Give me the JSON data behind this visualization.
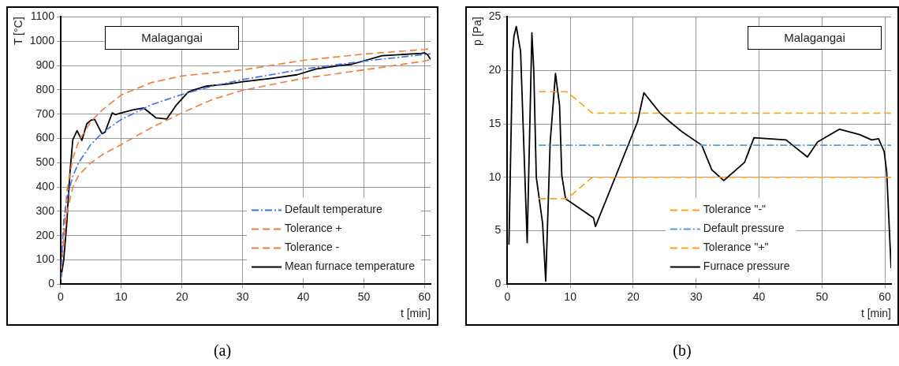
{
  "chart_data": [
    {
      "type": "line",
      "title": "(a)",
      "xlabel": "t [min]",
      "ylabel": "T [°C]",
      "xlim": [
        0,
        61
      ],
      "ylim": [
        0,
        1100
      ],
      "xticks": [
        0,
        10,
        20,
        30,
        40,
        50,
        60
      ],
      "yticks": [
        0,
        100,
        200,
        300,
        400,
        500,
        600,
        700,
        800,
        900,
        1000,
        1100
      ],
      "grid": true,
      "legend": "bottom right",
      "marker": "none",
      "annotations": [
        "Malagangai"
      ],
      "series": [
        {
          "name": "Default temperature",
          "color": "#3f6fe8",
          "line_style": "dashdot",
          "x": [
            0,
            0.5,
            1,
            2,
            3,
            5,
            7,
            10,
            15,
            20,
            25,
            30,
            40,
            50,
            60,
            61
          ],
          "values": [
            20,
            261,
            349,
            445,
            502,
            576,
            626,
            678,
            739,
            781,
            815,
            842,
            885,
            918,
            945,
            948
          ]
        },
        {
          "name": "Tolerance +",
          "color": "#f57a35",
          "line_style": "dashed",
          "x": [
            0,
            0.5,
            1,
            2,
            3,
            5,
            7,
            10,
            15,
            20,
            30,
            40,
            50,
            60,
            61
          ],
          "values": [
            20,
            200,
            380,
            520,
            590,
            670,
            720,
            779,
            830,
            857,
            882,
            921,
            947,
            966,
            970
          ]
        },
        {
          "name": "Tolerance -",
          "color": "#f57a35",
          "line_style": "dashed",
          "x": [
            0,
            0.5,
            1,
            2,
            3,
            5,
            7,
            10,
            15,
            20,
            25,
            30,
            40,
            50,
            60,
            61
          ],
          "values": [
            20,
            180,
            290,
            400,
            450,
            500,
            535,
            575,
            645,
            705,
            760,
            798,
            847,
            882,
            918,
            925
          ]
        },
        {
          "name": "Mean furnace temperature",
          "color": "#000000",
          "line_style": "solid",
          "x": [
            0,
            0.5,
            1,
            1.5,
            2,
            2.7,
            3.5,
            4.3,
            5,
            5.6,
            6.8,
            7.3,
            8.5,
            9,
            10,
            12,
            13.7,
            15.7,
            17.5,
            19,
            21,
            22,
            24,
            28,
            30,
            35,
            39,
            42,
            46,
            48,
            53,
            59.5,
            60,
            60.5,
            61
          ],
          "values": [
            20,
            100,
            250,
            450,
            595,
            632,
            592,
            660,
            675,
            678,
            620,
            625,
            705,
            698,
            705,
            718,
            725,
            685,
            680,
            735,
            790,
            800,
            815,
            825,
            833,
            848,
            862,
            885,
            900,
            905,
            940,
            950,
            952,
            945,
            925
          ]
        }
      ]
    },
    {
      "type": "line",
      "title": "(b)",
      "xlabel": "t [min]",
      "ylabel": "p [Pa]",
      "xlim": [
        0,
        61
      ],
      "ylim": [
        0,
        25
      ],
      "xticks": [
        0,
        10,
        20,
        30,
        40,
        50,
        60
      ],
      "yticks": [
        0,
        5,
        10,
        15,
        20,
        25
      ],
      "grid": true,
      "legend": "bottom",
      "marker": "none",
      "annotations": [
        "Malagangai"
      ],
      "series": [
        {
          "name": "Tolerance \"-\"",
          "color": "#ffa010",
          "line_style": "dashed",
          "x": [
            5,
            9.5,
            13.5,
            61
          ],
          "values": [
            18,
            18,
            16,
            16
          ]
        },
        {
          "name": "Default pressure",
          "color": "#5b9bd5",
          "line_style": "dashdot",
          "x": [
            5,
            61
          ],
          "values": [
            13,
            13
          ]
        },
        {
          "name": "Tolerance \"+\"",
          "color": "#ffa010",
          "line_style": "dashed",
          "x": [
            5,
            9.5,
            13.5,
            61
          ],
          "values": [
            8,
            8,
            10,
            10
          ]
        },
        {
          "name": "Furnace pressure",
          "color": "#000000",
          "line_style": "solid",
          "x": [
            0.25,
            0.84,
            1.05,
            1.42,
            2.1,
            3.15,
            3.9,
            4.2,
            4.6,
            5.6,
            6.1,
            6.8,
            7.06,
            7.3,
            7.65,
            8.3,
            8.65,
            9.25,
            13.7,
            14,
            20.7,
            21.7,
            24.3,
            25.8,
            27.9,
            30.9,
            32.5,
            34.4,
            37.7,
            39.2,
            44.3,
            47.7,
            49.3,
            52.8,
            56,
            57.9,
            59,
            59.9,
            60.3,
            61
          ],
          "values": [
            3.7,
            21.7,
            23.2,
            24.1,
            21.8,
            3.9,
            23.5,
            20,
            10,
            5.7,
            0.3,
            13.2,
            15.2,
            17,
            19.7,
            16.7,
            10.2,
            8,
            6.2,
            5.4,
            15.2,
            17.9,
            16,
            15.2,
            14.2,
            13,
            10.7,
            9.7,
            11.4,
            13.7,
            13.5,
            11.9,
            13.3,
            14.5,
            14,
            13.5,
            13.6,
            12.4,
            10.5,
            1.5
          ]
        }
      ]
    }
  ]
}
